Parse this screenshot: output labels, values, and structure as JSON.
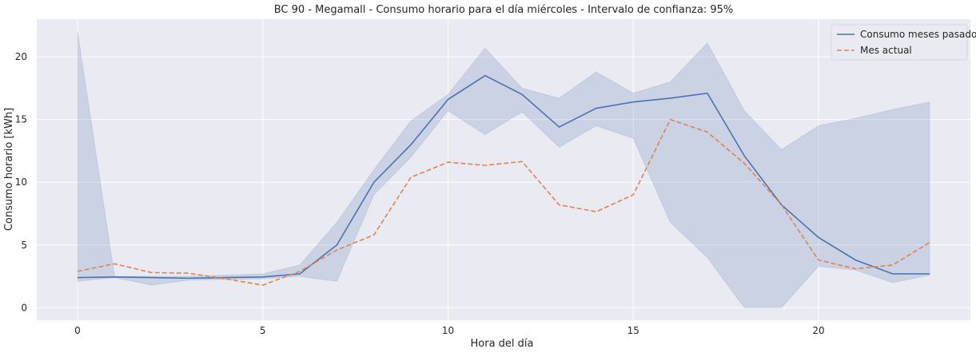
{
  "chart_data": {
    "type": "line",
    "title": "BC 90 - Megamall - Consumo horario para el día miércoles - Intervalo de confianza: 95%",
    "xlabel": "Hora del día",
    "ylabel": "Consumo horario [kWh]",
    "xlim": [
      -1.1,
      24.1
    ],
    "ylim": [
      -1.0,
      23.0
    ],
    "x_ticks": [
      0,
      5,
      10,
      15,
      20
    ],
    "y_ticks": [
      0,
      5,
      10,
      15,
      20
    ],
    "grid": true,
    "legend_position": "top-right",
    "x": [
      0,
      1,
      2,
      3,
      4,
      5,
      6,
      7,
      8,
      9,
      10,
      11,
      12,
      13,
      14,
      15,
      16,
      17,
      18,
      19,
      20,
      21,
      22,
      23
    ],
    "series": [
      {
        "name": "Consumo meses pasados",
        "style": "solid",
        "color": "#4c72b0",
        "values": [
          2.4,
          2.45,
          2.4,
          2.35,
          2.4,
          2.45,
          2.7,
          5.0,
          10.0,
          13.0,
          16.6,
          18.5,
          17.0,
          14.4,
          15.9,
          16.4,
          16.7,
          17.1,
          12.1,
          8.2,
          5.6,
          3.8,
          2.7,
          2.7
        ],
        "ci_lower": [
          2.1,
          2.4,
          1.8,
          2.2,
          2.25,
          2.3,
          2.5,
          2.1,
          9.0,
          12.0,
          15.7,
          13.8,
          15.6,
          12.8,
          14.5,
          13.5,
          6.8,
          4.0,
          0.0,
          0.0,
          3.3,
          3.0,
          2.0,
          2.6
        ],
        "ci_upper": [
          22.0,
          2.5,
          2.5,
          2.5,
          2.6,
          2.7,
          3.4,
          6.8,
          11.0,
          14.9,
          17.0,
          20.7,
          17.5,
          16.7,
          18.8,
          17.1,
          18.0,
          21.1,
          15.7,
          12.6,
          14.5,
          15.1,
          15.8,
          16.4
        ]
      },
      {
        "name": "Mes actual",
        "style": "dashed",
        "color": "#dd8452",
        "values": [
          2.9,
          3.5,
          2.8,
          2.75,
          2.3,
          1.8,
          2.9,
          4.6,
          5.8,
          10.4,
          11.6,
          11.35,
          11.65,
          8.2,
          7.65,
          9.0,
          15.0,
          14.0,
          11.5,
          8.2,
          3.8,
          3.1,
          3.4,
          5.2
        ]
      }
    ]
  }
}
